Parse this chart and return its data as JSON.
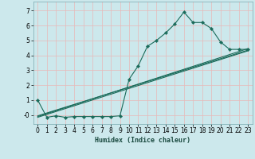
{
  "title": "",
  "xlabel": "Humidex (Indice chaleur)",
  "ylabel": "",
  "bg_color": "#cce8ec",
  "grid_color": "#b8d8dc",
  "line_color": "#1a6b5a",
  "xlim": [
    -0.5,
    23.5
  ],
  "ylim": [
    -0.6,
    7.6
  ],
  "xticks": [
    0,
    1,
    2,
    3,
    4,
    5,
    6,
    7,
    8,
    9,
    10,
    11,
    12,
    13,
    14,
    15,
    16,
    17,
    18,
    19,
    20,
    21,
    22,
    23
  ],
  "yticks": [
    0,
    1,
    2,
    3,
    4,
    5,
    6,
    7
  ],
  "ytick_labels": [
    "-0",
    "1",
    "2",
    "3",
    "4",
    "5",
    "6",
    "7"
  ],
  "curve1_x": [
    0,
    1,
    2,
    3,
    4,
    5,
    6,
    7,
    8,
    9,
    10,
    11,
    12,
    13,
    14,
    15,
    16,
    17,
    18,
    19,
    20,
    21,
    22,
    23
  ],
  "curve1_y": [
    1.0,
    -0.15,
    -0.05,
    -0.15,
    -0.1,
    -0.1,
    -0.1,
    -0.1,
    -0.1,
    -0.05,
    2.4,
    3.3,
    4.6,
    5.0,
    5.5,
    6.1,
    6.9,
    6.2,
    6.2,
    5.8,
    4.9,
    4.4,
    4.4,
    4.4
  ],
  "line2_x": [
    0,
    23
  ],
  "line2_y": [
    -0.05,
    4.35
  ],
  "line3_x": [
    0,
    23
  ],
  "line3_y": [
    -0.1,
    4.45
  ],
  "line4_x": [
    0,
    23
  ],
  "line4_y": [
    -0.15,
    4.3
  ]
}
